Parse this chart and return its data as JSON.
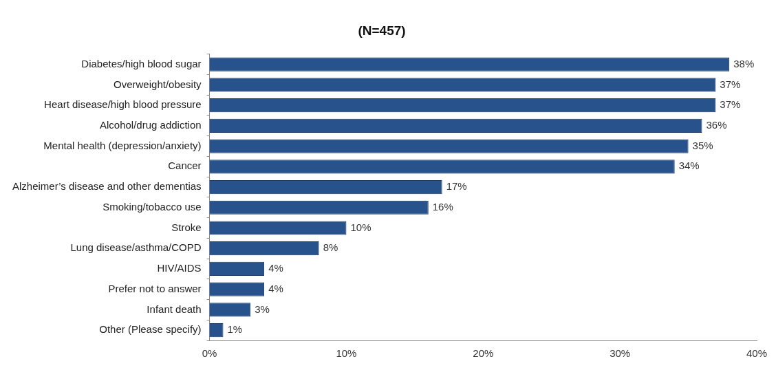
{
  "chart_data": {
    "type": "bar",
    "orientation": "horizontal",
    "title": "(N=457)",
    "categories": [
      "Diabetes/high blood sugar",
      "Overweight/obesity",
      "Heart disease/high blood pressure",
      "Alcohol/drug addiction",
      "Mental health (depression/anxiety)",
      "Cancer",
      "Alzheimer’s disease and other dementias",
      "Smoking/tobacco use",
      "Stroke",
      "Lung disease/asthma/COPD",
      "HIV/AIDS",
      "Prefer not to answer",
      "Infant death",
      "Other (Please specify)"
    ],
    "values": [
      38,
      37,
      37,
      36,
      35,
      34,
      17,
      16,
      10,
      8,
      4,
      4,
      3,
      1
    ],
    "color": "#28528c",
    "xlim": [
      0,
      40
    ],
    "xticks": [
      {
        "value": 0,
        "label": "0%"
      },
      {
        "value": 10,
        "label": "10%"
      },
      {
        "value": 20,
        "label": "20%"
      },
      {
        "value": 30,
        "label": "30%"
      },
      {
        "value": 40,
        "label": "40%"
      }
    ],
    "value_labels": [
      "38%",
      "37%",
      "37%",
      "36%",
      "35%",
      "34%",
      "17%",
      "16%",
      "10%",
      "8%",
      "4%",
      "4%",
      "3%",
      "1%"
    ],
    "grid": false,
    "legend": false
  }
}
